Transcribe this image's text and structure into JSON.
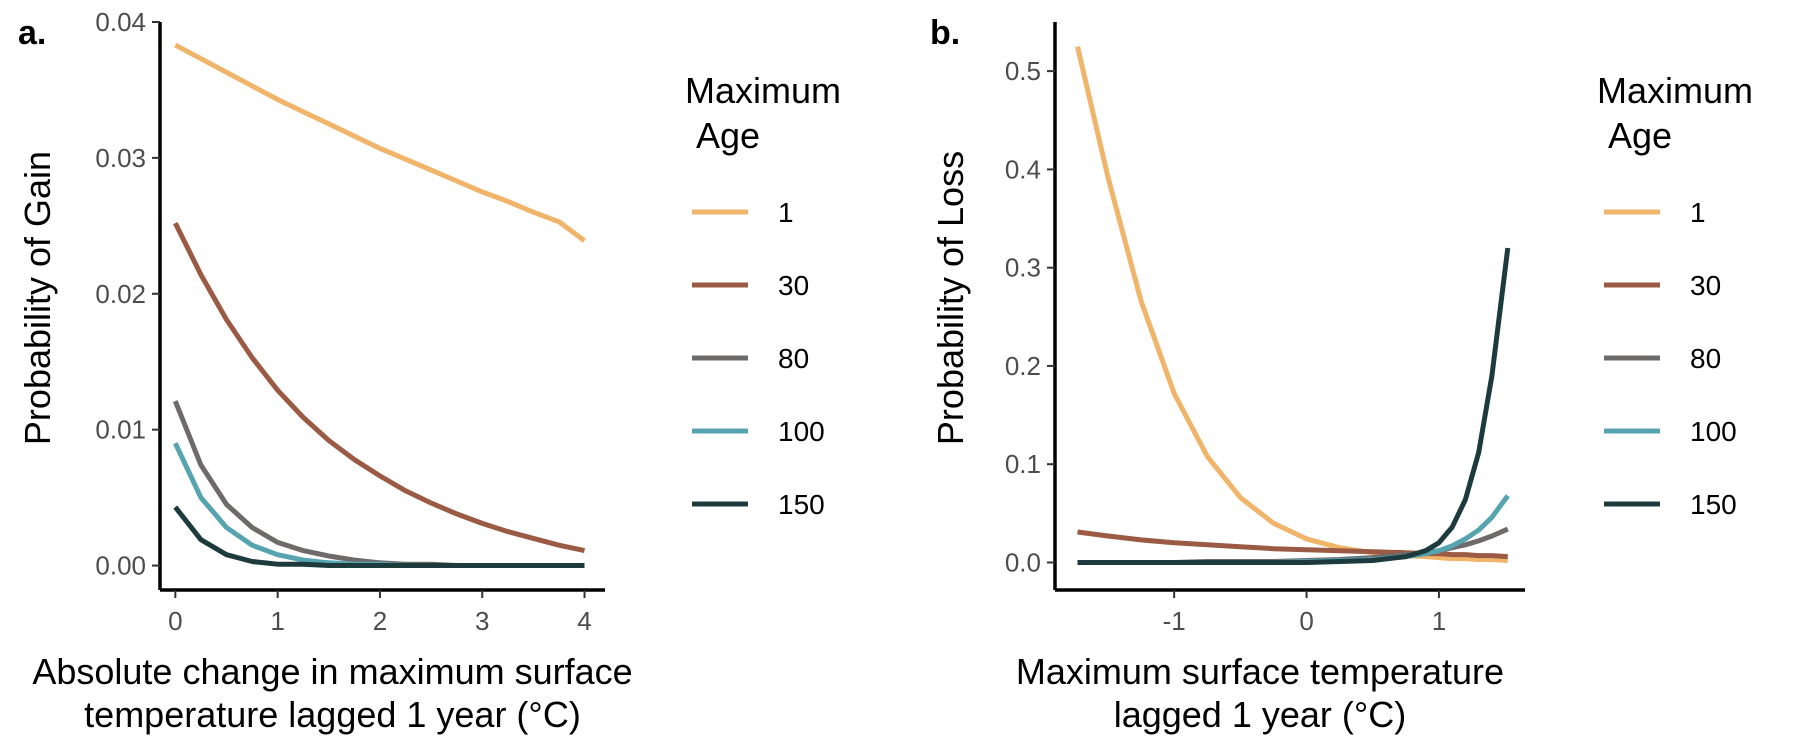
{
  "legend_colors": {
    "1": "#F0B46A",
    "30": "#9B5A44",
    "80": "#6E6A6A",
    "100": "#56A4B0",
    "150": "#1D3B3D"
  },
  "chart_data": [
    {
      "type": "line",
      "panel_label": "a.",
      "title": "",
      "xlabel": [
        "Absolute change in maximum surface",
        "temperature lagged 1 year (°C)"
      ],
      "ylabel": "Probability of Gain",
      "xlim": [
        -0.15,
        4.2
      ],
      "ylim": [
        -0.0018,
        0.04
      ],
      "xticks": [
        0,
        1,
        2,
        3,
        4
      ],
      "xtick_labels": [
        "0",
        "1",
        "2",
        "3",
        "4"
      ],
      "yticks": [
        0,
        0.01,
        0.02,
        0.03,
        0.04
      ],
      "ytick_labels": [
        "0.00",
        "0.01",
        "0.02",
        "0.03",
        "0.04"
      ],
      "grid": false,
      "legend": {
        "title": [
          "Maximum",
          "Age"
        ],
        "position": "right",
        "entries": [
          "1",
          "30",
          "80",
          "100",
          "150"
        ]
      },
      "x": [
        0,
        0.25,
        0.5,
        0.75,
        1,
        1.25,
        1.5,
        1.75,
        2,
        2.25,
        2.5,
        2.75,
        3,
        3.25,
        3.5,
        3.75,
        4
      ],
      "series": [
        {
          "name": "1",
          "values": [
            0.0383,
            0.0373,
            0.0363,
            0.0353,
            0.0343,
            0.0334,
            0.0325,
            0.0316,
            0.0307,
            0.0299,
            0.0291,
            0.0283,
            0.0275,
            0.0268,
            0.026,
            0.0253,
            0.0239
          ]
        },
        {
          "name": "30",
          "values": [
            0.0252,
            0.0214,
            0.0181,
            0.0153,
            0.0129,
            0.0109,
            0.0092,
            0.0078,
            0.0066,
            0.0055,
            0.0046,
            0.0038,
            0.0031,
            0.0025,
            0.002,
            0.0015,
            0.0011
          ]
        },
        {
          "name": "80",
          "values": [
            0.0121,
            0.0074,
            0.0045,
            0.0028,
            0.0017,
            0.0011,
            0.0007,
            0.0004,
            0.0002,
            0.0001,
            0.0001,
            0.0,
            0.0,
            0.0,
            0.0,
            0.0,
            0.0
          ]
        },
        {
          "name": "100",
          "values": [
            0.009,
            0.005,
            0.0028,
            0.0015,
            0.0008,
            0.0004,
            0.0002,
            0.0001,
            0.0001,
            0.0,
            0.0,
            0.0,
            0.0,
            0.0,
            0.0,
            0.0,
            0.0
          ]
        },
        {
          "name": "150",
          "values": [
            0.0043,
            0.0019,
            0.0008,
            0.0003,
            0.0001,
            0.0001,
            0.0,
            0.0,
            0.0,
            0.0,
            0.0,
            0.0,
            0.0,
            0.0,
            0.0,
            0.0,
            0.0
          ]
        }
      ]
    },
    {
      "type": "line",
      "panel_label": "b.",
      "title": "",
      "xlabel": [
        "Maximum surface temperature",
        "lagged 1 year (°C)"
      ],
      "ylabel": "Probability of Loss",
      "xlim": [
        -1.9,
        1.65
      ],
      "ylim": [
        -0.028,
        0.55
      ],
      "xticks": [
        -1,
        0,
        1
      ],
      "xtick_labels": [
        "-1",
        "0",
        "1"
      ],
      "yticks": [
        0,
        0.1,
        0.2,
        0.3,
        0.4,
        0.5
      ],
      "ytick_labels": [
        "0.0",
        "0.1",
        "0.2",
        "0.3",
        "0.4",
        "0.5"
      ],
      "grid": false,
      "legend": {
        "title": [
          "Maximum",
          "Age"
        ],
        "position": "right",
        "entries": [
          "1",
          "30",
          "80",
          "100",
          "150"
        ]
      },
      "x": [
        -1.73,
        -1.5,
        -1.25,
        -1.0,
        -0.75,
        -0.5,
        -0.25,
        0.0,
        0.25,
        0.5,
        0.75,
        0.9,
        1.0,
        1.1,
        1.2,
        1.3,
        1.4,
        1.52
      ],
      "series": [
        {
          "name": "1",
          "values": [
            0.525,
            0.392,
            0.266,
            0.172,
            0.108,
            0.066,
            0.04,
            0.024,
            0.015,
            0.01,
            0.007,
            0.006,
            0.005,
            0.004,
            0.004,
            0.003,
            0.003,
            0.002
          ]
        },
        {
          "name": "30",
          "values": [
            0.031,
            0.027,
            0.023,
            0.02,
            0.018,
            0.016,
            0.014,
            0.013,
            0.012,
            0.011,
            0.01,
            0.009,
            0.009,
            0.008,
            0.008,
            0.007,
            0.007,
            0.006
          ]
        },
        {
          "name": "80",
          "values": [
            0.0,
            0.0,
            0.0,
            0.0,
            0.001,
            0.001,
            0.001,
            0.002,
            0.003,
            0.005,
            0.008,
            0.01,
            0.012,
            0.015,
            0.018,
            0.022,
            0.027,
            0.034
          ]
        },
        {
          "name": "100",
          "values": [
            0.0,
            0.0,
            0.0,
            0.0,
            0.0,
            0.0,
            0.0,
            0.001,
            0.002,
            0.003,
            0.006,
            0.009,
            0.012,
            0.017,
            0.024,
            0.033,
            0.046,
            0.068
          ]
        },
        {
          "name": "150",
          "values": [
            0.0,
            0.0,
            0.0,
            0.0,
            0.0,
            0.0,
            0.0,
            0.0,
            0.001,
            0.002,
            0.006,
            0.012,
            0.02,
            0.036,
            0.064,
            0.112,
            0.19,
            0.32
          ]
        }
      ]
    }
  ]
}
